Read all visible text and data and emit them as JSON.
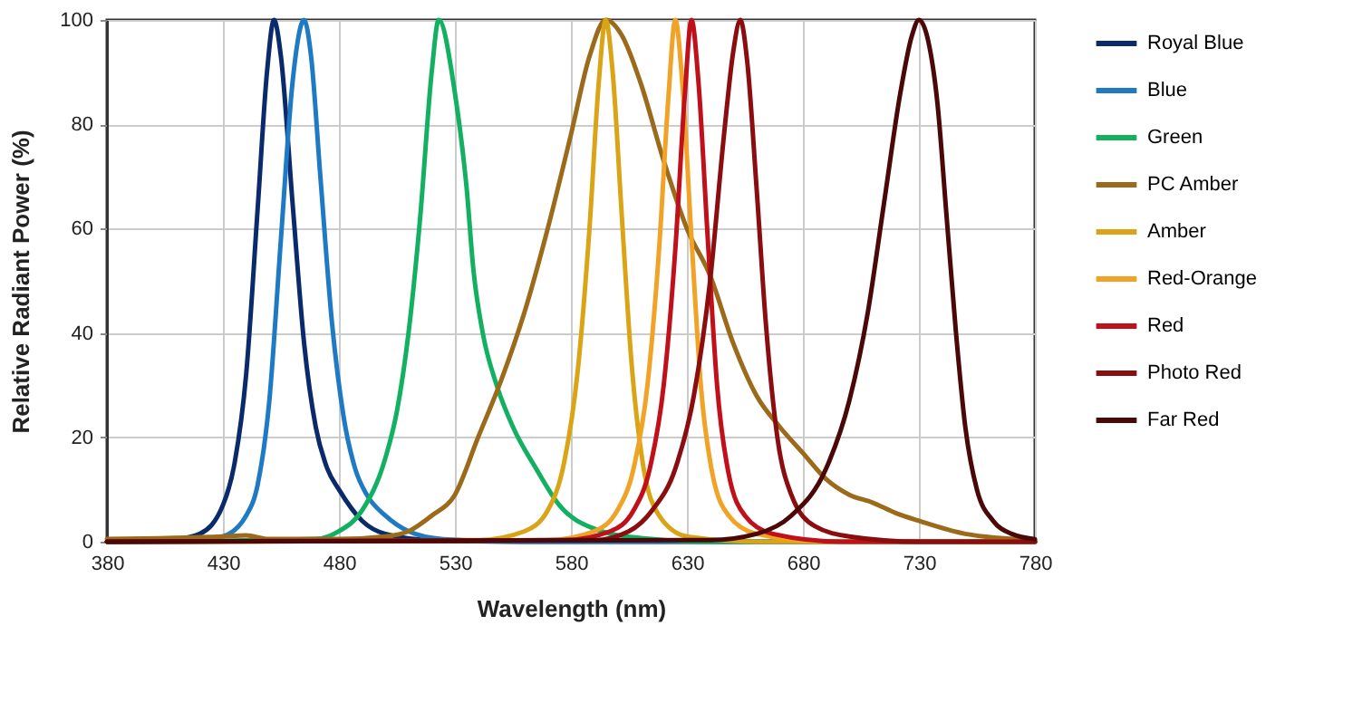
{
  "chart_data": {
    "type": "line",
    "xlabel": "Wavelength (nm)",
    "ylabel": "Relative Radiant Power (%)",
    "xlim": [
      380,
      780
    ],
    "xticks": [
      380,
      430,
      480,
      530,
      580,
      630,
      680,
      730,
      780
    ],
    "ylim": [
      0,
      100
    ],
    "yticks": [
      0,
      20,
      40,
      60,
      80,
      100
    ],
    "grid": true,
    "legend": "right",
    "line_style": "solid",
    "series": [
      {
        "name": "Royal Blue",
        "color": "#0b2a6b",
        "x": [
          380,
          410,
          420,
          430,
          435,
          440,
          445,
          449,
          452,
          455,
          460,
          465,
          470,
          475,
          480,
          490,
          500,
          520,
          560,
          780
        ],
        "values": [
          0,
          0.5,
          1.5,
          7,
          15,
          32,
          64,
          90,
          100,
          93,
          65,
          38,
          22,
          14,
          10,
          4,
          1.5,
          0.3,
          0,
          0
        ]
      },
      {
        "name": "Blue",
        "color": "#1f7ac4",
        "x": [
          380,
          420,
          430,
          440,
          445,
          450,
          455,
          460,
          465,
          468,
          472,
          477,
          482,
          487,
          492,
          500,
          510,
          525,
          560,
          780
        ],
        "values": [
          0,
          0.3,
          1,
          5,
          11,
          27,
          58,
          88,
          100,
          93,
          70,
          42,
          24,
          14,
          9,
          5,
          2,
          0.5,
          0,
          0
        ]
      },
      {
        "name": "Green",
        "color": "#13b062",
        "x": [
          380,
          470,
          480,
          490,
          500,
          505,
          510,
          515,
          520,
          523,
          530,
          535,
          538,
          542,
          548,
          555,
          565,
          575,
          590,
          610,
          640,
          780
        ],
        "values": [
          0,
          0.5,
          2,
          6,
          16,
          25,
          40,
          62,
          90,
          100,
          86,
          68,
          52,
          40,
          30,
          22,
          14,
          7,
          2.5,
          0.7,
          0,
          0
        ]
      },
      {
        "name": "PC Amber",
        "color": "#9b6a1a",
        "x": [
          380,
          430,
          440,
          450,
          480,
          500,
          510,
          520,
          530,
          540,
          550,
          560,
          570,
          580,
          588,
          595,
          602,
          610,
          620,
          630,
          640,
          650,
          660,
          670,
          680,
          690,
          700,
          710,
          720,
          730,
          750,
          780
        ],
        "values": [
          0.5,
          1,
          1.2,
          0.5,
          0.5,
          1,
          2,
          5,
          9,
          20,
          31,
          44,
          60,
          78,
          93,
          100,
          97,
          88,
          73,
          60,
          51,
          38,
          28,
          22,
          17,
          12,
          9,
          7.5,
          5.5,
          4,
          1.5,
          0.3
        ]
      },
      {
        "name": "Amber",
        "color": "#d9a516",
        "x": [
          380,
          540,
          560,
          570,
          577,
          583,
          588,
          592,
          595,
          598,
          602,
          606,
          611,
          618,
          630,
          660,
          780
        ],
        "values": [
          0,
          0.3,
          2,
          6,
          15,
          33,
          60,
          88,
          100,
          90,
          62,
          35,
          15,
          5,
          1,
          0,
          0
        ]
      },
      {
        "name": "Red-Orange",
        "color": "#f0a326",
        "x": [
          380,
          570,
          590,
          600,
          607,
          613,
          618,
          622,
          625,
          628,
          632,
          636,
          641,
          648,
          660,
          690,
          780
        ],
        "values": [
          0,
          0.3,
          2,
          6,
          14,
          30,
          56,
          85,
          100,
          88,
          58,
          30,
          13,
          5,
          1.5,
          0,
          0
        ]
      },
      {
        "name": "Red",
        "color": "#c0101a",
        "x": [
          380,
          577,
          597,
          607,
          614,
          620,
          625,
          629,
          632,
          635,
          639,
          643,
          648,
          655,
          667,
          697,
          780
        ],
        "values": [
          0,
          0.3,
          2,
          6,
          14,
          30,
          56,
          85,
          100,
          88,
          58,
          30,
          13,
          5,
          1.5,
          0,
          0
        ]
      },
      {
        "name": "Photo Red",
        "color": "#8a0d10",
        "x": [
          380,
          590,
          605,
          615,
          625,
          633,
          640,
          646,
          650,
          653,
          656,
          660,
          664,
          669,
          675,
          685,
          700,
          730,
          780
        ],
        "values": [
          0,
          0.3,
          2,
          6,
          14,
          28,
          50,
          78,
          94,
          100,
          92,
          68,
          42,
          20,
          9,
          3,
          1,
          0,
          0
        ]
      },
      {
        "name": "Far Red",
        "color": "#4a0808",
        "x": [
          380,
          640,
          660,
          675,
          690,
          700,
          708,
          715,
          722,
          727,
          730,
          734,
          738,
          742,
          746,
          750,
          755,
          762,
          770,
          780
        ],
        "values": [
          0,
          0.3,
          1.5,
          5,
          14,
          27,
          44,
          65,
          86,
          97,
          100,
          96,
          84,
          62,
          40,
          22,
          10,
          4,
          1.5,
          0.5
        ]
      }
    ]
  }
}
